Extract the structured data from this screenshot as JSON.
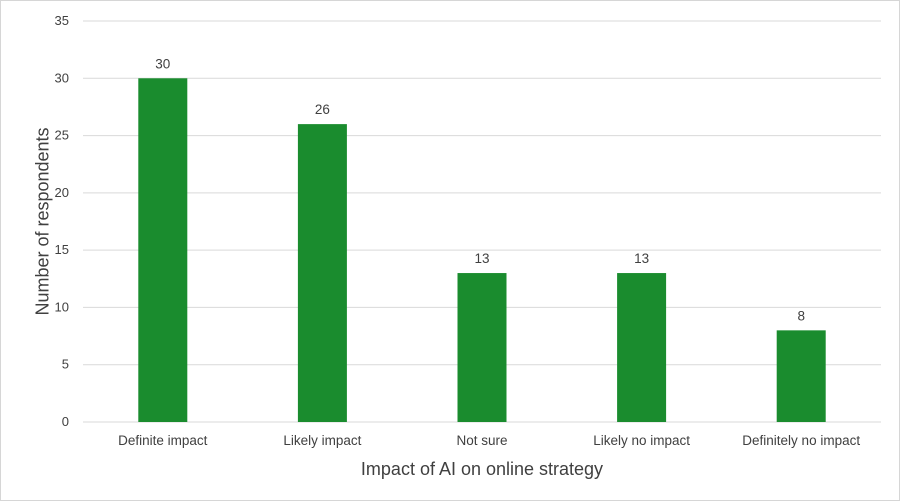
{
  "chart_data": {
    "type": "bar",
    "title": "",
    "xlabel": "Impact of AI on online strategy",
    "ylabel": "Number of respondents",
    "categories": [
      "Definite impact",
      "Likely impact",
      "Not sure",
      "Likely no impact",
      "Definitely no impact"
    ],
    "values": [
      30,
      26,
      13,
      13,
      8
    ],
    "ylim": [
      0,
      35
    ],
    "yticks": [
      "0",
      "5",
      "10",
      "15",
      "20",
      "25",
      "30",
      "35"
    ],
    "grid": true,
    "legend": "none",
    "bar_color": "#1a8c2e"
  }
}
